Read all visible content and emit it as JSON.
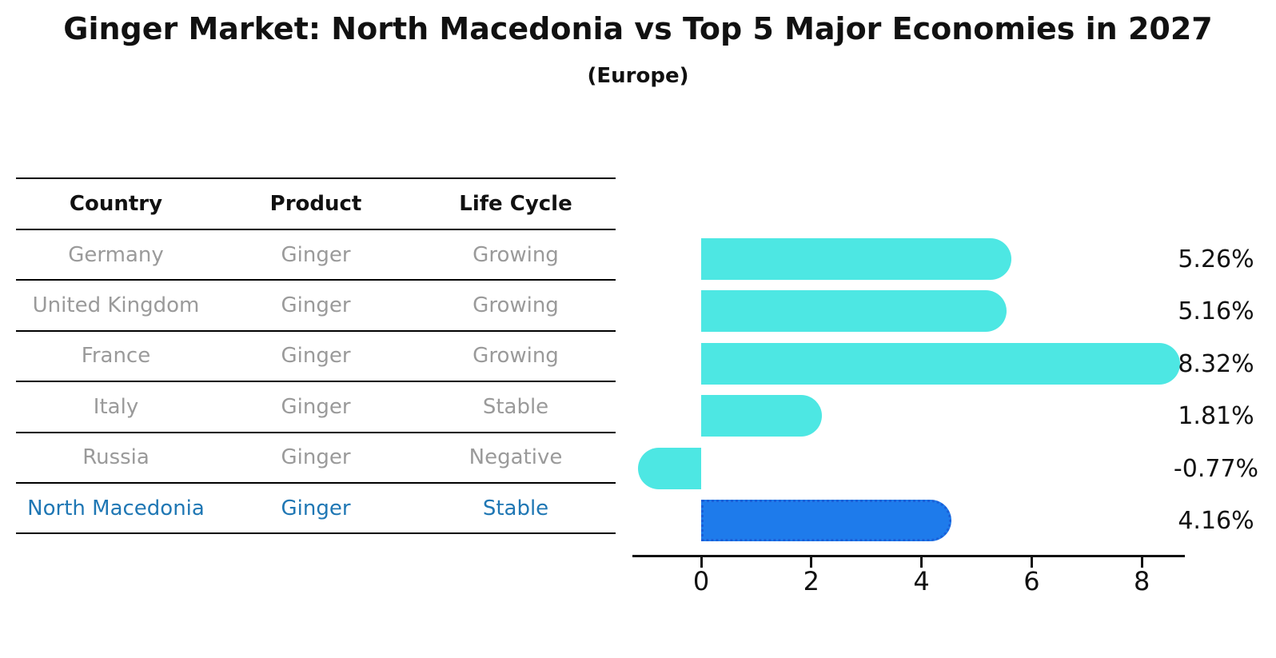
{
  "header": {
    "title": "Ginger Market: North Macedonia vs Top 5 Major Economies in 2027",
    "subtitle": "(Europe)"
  },
  "table": {
    "columns": [
      "Country",
      "Product",
      "Life Cycle"
    ],
    "rows": [
      {
        "country": "Germany",
        "product": "Ginger",
        "life_cycle": "Growing",
        "highlight": false
      },
      {
        "country": "United Kingdom",
        "product": "Ginger",
        "life_cycle": "Growing",
        "highlight": false
      },
      {
        "country": "France",
        "product": "Ginger",
        "life_cycle": "Growing",
        "highlight": false
      },
      {
        "country": "Italy",
        "product": "Ginger",
        "life_cycle": "Stable",
        "highlight": false
      },
      {
        "country": "Russia",
        "product": "Ginger",
        "life_cycle": "Negative",
        "highlight": false
      },
      {
        "country": "North Macedonia",
        "product": "Ginger",
        "life_cycle": "Stable",
        "highlight": true
      }
    ]
  },
  "chart_data": {
    "type": "bar",
    "orientation": "horizontal",
    "title": "Ginger Market: North Macedonia vs Top 5 Major Economies in 2027",
    "subtitle": "(Europe)",
    "categories": [
      "Germany",
      "United Kingdom",
      "France",
      "Italy",
      "Russia",
      "North Macedonia"
    ],
    "values": [
      5.26,
      5.16,
      8.32,
      1.81,
      -0.77,
      4.16
    ],
    "value_labels": [
      "5.26%",
      "5.16%",
      "8.32%",
      "1.81%",
      "-0.77%",
      "4.16%"
    ],
    "x_ticks": [
      0,
      2,
      4,
      6,
      8
    ],
    "xlim": [
      -1.25,
      8.78
    ],
    "grid": false,
    "legend": "none",
    "highlight_index": 5,
    "colors": {
      "bar": "#4DE7E3",
      "highlight_bar": "#1E7BEB",
      "highlight_border": "#1A5FD8",
      "row_text": "#9a9a9a",
      "highlight_text": "#1f77b4",
      "axis": "#111111"
    }
  }
}
